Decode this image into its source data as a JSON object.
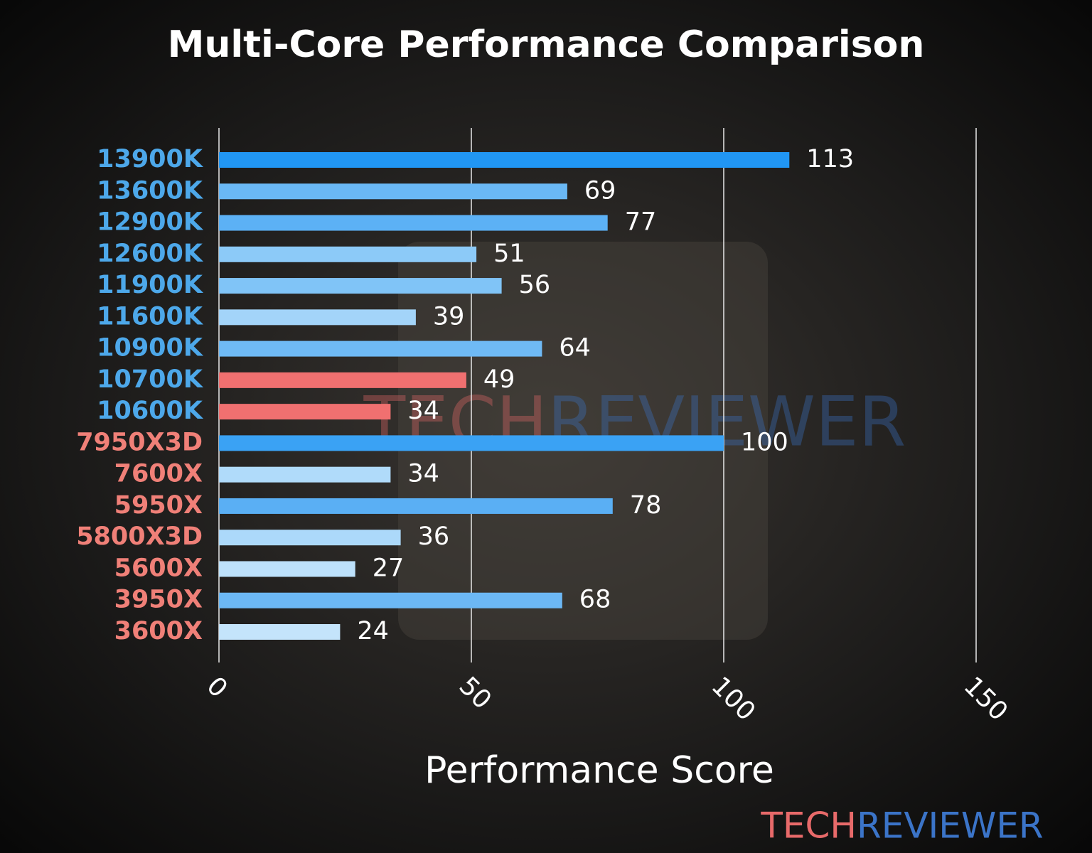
{
  "chart_data": {
    "type": "barh",
    "title": "Multi-Core Performance Comparison",
    "x_label": "Performance Score",
    "categories": [
      "13900K",
      "13600K",
      "12900K",
      "12600K",
      "11900K",
      "11600K",
      "10900K",
      "10700K",
      "10600K",
      "7950X3D",
      "7600X",
      "5950X",
      "5800X3D",
      "5600X",
      "3950X",
      "3600X"
    ],
    "category_colors": [
      "#4da8ea",
      "#4da8ea",
      "#4da8ea",
      "#4da8ea",
      "#4da8ea",
      "#4da8ea",
      "#4da8ea",
      "#4da8ea",
      "#4da8ea",
      "#f08078",
      "#f08078",
      "#f08078",
      "#f08078",
      "#f08078",
      "#f08078",
      "#f08078"
    ],
    "values": [
      113,
      69,
      77,
      51,
      56,
      39,
      64,
      49,
      34,
      100,
      34,
      78,
      36,
      27,
      68,
      24
    ],
    "colors": [
      "#2196f3",
      "#6ab8f5",
      "#5cb1f5",
      "#8ccaf8",
      "#80c4f7",
      "#a3d4f9",
      "#6fbaf5",
      "#f07070",
      "#f07070",
      "#3aa2f4",
      "#b0dbfa",
      "#5aaff4",
      "#acd9fa",
      "#bde1fb",
      "#6cb8f5",
      "#c4e4fb"
    ],
    "xlim": [
      0,
      150
    ],
    "xticks": [
      0,
      50,
      100,
      150
    ],
    "grid": true,
    "watermark": {
      "left": "TECH",
      "right": "REVIEWER",
      "left_color": "#e86a6a",
      "right_color": "#3b74c8"
    }
  }
}
